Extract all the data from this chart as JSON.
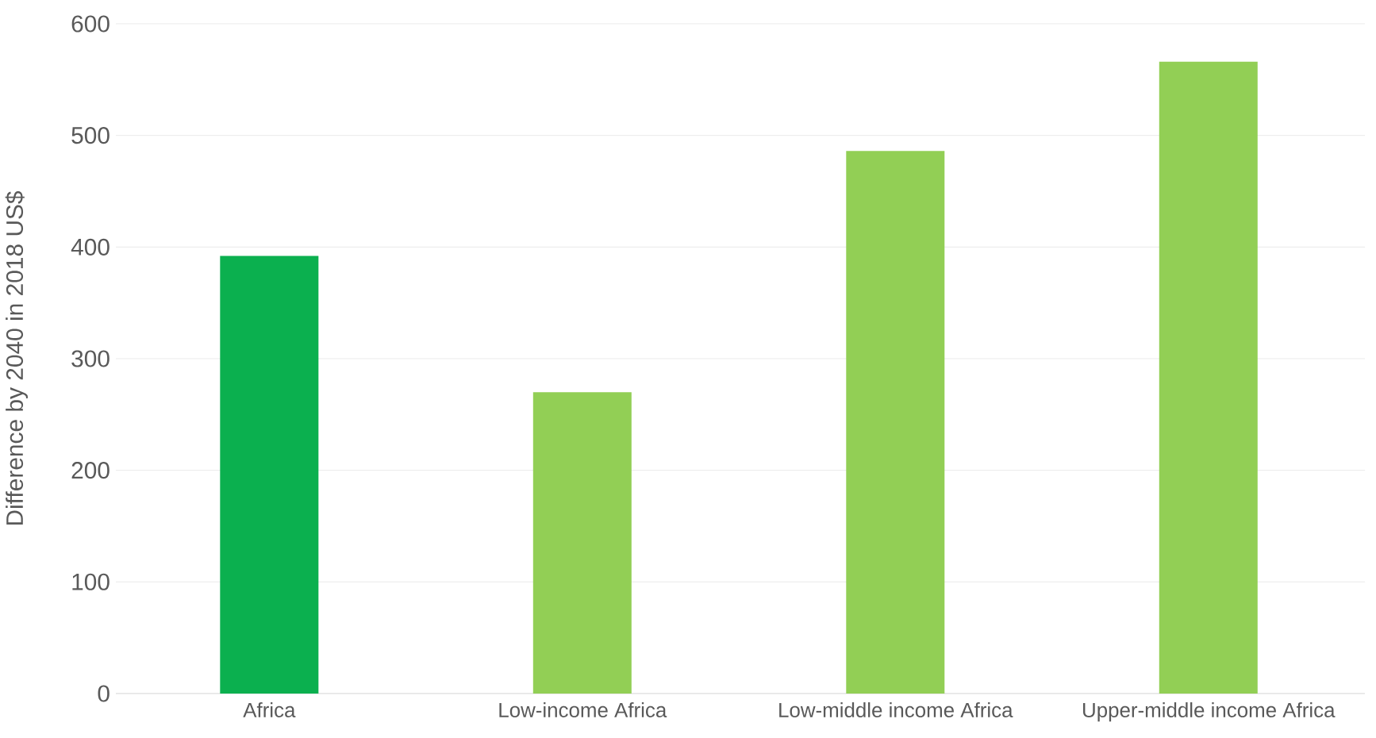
{
  "chart_data": {
    "type": "bar",
    "ylabel": "Difference by 2040 in 2018 US$",
    "categories": [
      "Africa",
      "Low-income Africa",
      "Low-middle income Africa",
      "Upper-middle income Africa"
    ],
    "values": [
      392,
      270,
      486,
      566
    ],
    "colors": [
      "#0bb04f",
      "#92cf55",
      "#92cf55",
      "#92cf55"
    ],
    "ylim": [
      0,
      600
    ],
    "yticks": [
      0,
      100,
      200,
      300,
      400,
      500,
      600
    ],
    "grid": "y"
  }
}
